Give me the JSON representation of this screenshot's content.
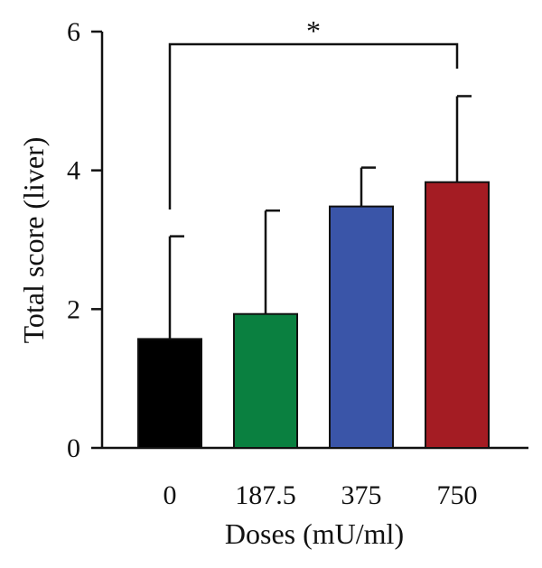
{
  "chart_data": {
    "type": "bar",
    "xlabel": "Doses (mU/ml)",
    "ylabel": "Total score (liver)",
    "ylim": [
      0,
      6
    ],
    "yticks": [
      0,
      2,
      4,
      6
    ],
    "categories": [
      "0",
      "187.5",
      "375",
      "750"
    ],
    "values": [
      1.57,
      1.93,
      3.48,
      3.83
    ],
    "errors": [
      1.48,
      1.49,
      0.56,
      1.24
    ],
    "colors": [
      "#000000",
      "#0a8040",
      "#3a55a8",
      "#a41c23"
    ],
    "grid": false,
    "legend": "none",
    "annotations": [
      {
        "type": "significance",
        "from": "0",
        "to": "750",
        "text": "*"
      }
    ]
  }
}
